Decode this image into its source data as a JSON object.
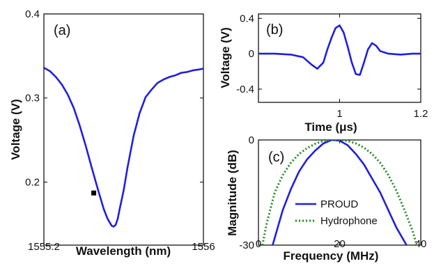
{
  "chart_data": [
    {
      "panel": "(a)",
      "type": "line",
      "xlabel": "Wavelength (nm)",
      "ylabel": "Voltage (V)",
      "xlim": [
        1555.2,
        1556.0
      ],
      "ylim": [
        0.125,
        0.4
      ],
      "xticks": [
        "1555.2",
        "1556"
      ],
      "yticks": [
        "0.2",
        "0.3",
        "0.4"
      ],
      "grid": false,
      "series": [
        {
          "color": "#1f1fe0",
          "x": [
            1555.2,
            1555.23,
            1555.26,
            1555.29,
            1555.32,
            1555.35,
            1555.38,
            1555.41,
            1555.44,
            1555.47,
            1555.5,
            1555.52,
            1555.54,
            1555.55,
            1555.56,
            1555.57,
            1555.58,
            1555.6,
            1555.62,
            1555.65,
            1555.68,
            1555.71,
            1555.74,
            1555.77,
            1555.8,
            1555.83,
            1555.86,
            1555.89,
            1555.92,
            1555.95,
            1555.98,
            1556.0
          ],
          "y": [
            0.336,
            0.332,
            0.325,
            0.316,
            0.304,
            0.288,
            0.267,
            0.243,
            0.217,
            0.192,
            0.168,
            0.156,
            0.148,
            0.147,
            0.149,
            0.156,
            0.168,
            0.19,
            0.218,
            0.255,
            0.282,
            0.301,
            0.31,
            0.318,
            0.322,
            0.325,
            0.327,
            0.33,
            0.331,
            0.333,
            0.334,
            0.335
          ]
        }
      ],
      "marker": {
        "x": 1555.45,
        "y": 0.187,
        "color": "#000000"
      }
    },
    {
      "panel": "(b)",
      "type": "line",
      "xlabel": "Time (μs)",
      "ylabel": "Voltage (V)",
      "xlim": [
        0.8,
        1.2
      ],
      "ylim": [
        -0.55,
        0.45
      ],
      "xticks": [
        "1",
        "1.2"
      ],
      "yticks": [
        "0.4",
        "0",
        "-0.4"
      ],
      "grid": false,
      "series": [
        {
          "color": "#1f1fe0",
          "x": [
            0.8,
            0.84,
            0.88,
            0.91,
            0.93,
            0.945,
            0.96,
            0.97,
            0.98,
            0.99,
            1.0,
            1.01,
            1.02,
            1.03,
            1.04,
            1.05,
            1.06,
            1.07,
            1.08,
            1.09,
            1.1,
            1.12,
            1.15,
            1.18,
            1.2
          ],
          "y": [
            0.0,
            0.0,
            -0.01,
            -0.04,
            -0.12,
            -0.17,
            -0.1,
            0.05,
            0.18,
            0.29,
            0.32,
            0.24,
            0.08,
            -0.1,
            -0.23,
            -0.24,
            -0.1,
            0.05,
            0.12,
            0.09,
            0.03,
            0.0,
            -0.01,
            0.0,
            0.0
          ]
        }
      ]
    },
    {
      "panel": "(c)",
      "type": "line",
      "xlabel": "Frequency (MHz)",
      "ylabel": "Magnitude (dB)",
      "xlim": [
        0,
        40
      ],
      "ylim": [
        -30,
        0
      ],
      "xticks": [
        "0",
        "20",
        "40"
      ],
      "yticks": [
        "0",
        "-30"
      ],
      "grid": false,
      "legend": "lower-center",
      "series": [
        {
          "name": "PROUD",
          "color": "#1f1fe0",
          "dash": "solid",
          "x": [
            3.5,
            6,
            8,
            10,
            12,
            14,
            16,
            18,
            20,
            22,
            24,
            26,
            28,
            30,
            32,
            34,
            36.5
          ],
          "y": [
            -30,
            -20,
            -14,
            -9,
            -5.5,
            -3,
            -1,
            0,
            -0.2,
            -1.5,
            -4,
            -7,
            -11,
            -15,
            -20,
            -25,
            -30
          ]
        },
        {
          "name": "Hydrophone",
          "color": "#1a8a1a",
          "dash": "dotted",
          "x": [
            1,
            2,
            4,
            6,
            8,
            10,
            12,
            14,
            16,
            18,
            20,
            22,
            24,
            26,
            28,
            30,
            32,
            34,
            36,
            38,
            39
          ],
          "y": [
            -30,
            -24,
            -15,
            -10,
            -6.5,
            -4,
            -2.3,
            -1.1,
            -0.3,
            0,
            0,
            -0.3,
            -1,
            -2.2,
            -4,
            -6.5,
            -10,
            -14.5,
            -20,
            -26,
            -30
          ]
        }
      ]
    }
  ]
}
